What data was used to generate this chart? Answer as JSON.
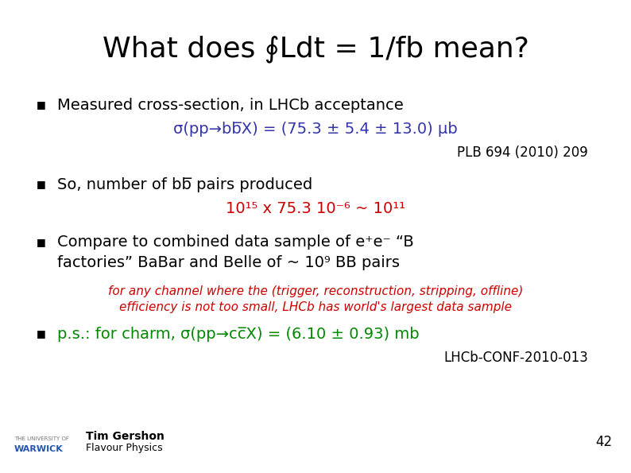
{
  "background_color": "#ffffff",
  "title_color": "#000000",
  "title_fontsize": 26,
  "body_fontsize": 14,
  "small_fontsize": 11,
  "ref_fontsize": 12,
  "blue_color": "#3333aa",
  "red_color": "#cc0000",
  "green_color": "#008800",
  "black_color": "#000000",
  "gray_color": "#888888",
  "bullet_symbol": "■",
  "title_text": "What does ∮Ldt = 1/fb mean?",
  "b1_text": "Measured cross-section, in LHCb acceptance",
  "b1_blue": "σ(pp→bb̅X) = (75.3 ± 5.4 ± 13.0) μb",
  "b1_ref": "PLB 694 (2010) 209",
  "b2_text": "So, number of bb̅ pairs produced",
  "b2_red": "10¹⁵ x 75.3 10⁻⁶ ~ 10¹¹",
  "b3_line1": "Compare to combined data sample of e⁺e⁻ “B",
  "b3_line2": "factories” BaBar and Belle of ~ 10⁹ BB pairs",
  "red_line1": "for any channel where the (trigger, reconstruction, stripping, offline)",
  "red_line2": "efficiency is not too small, LHCb has world's largest data sample",
  "b4_text": "p.s.: for charm, σ(pp→cc̅X) = (6.10 ± 0.93) mb",
  "ref_line": "LHCb-CONF-2010-013",
  "footer_name": "Tim Gershon",
  "footer_role": "Flavour Physics",
  "footer_num": "42",
  "univ_line1": "THE UNIVERSITY OF",
  "univ_line2": "WARWICK"
}
